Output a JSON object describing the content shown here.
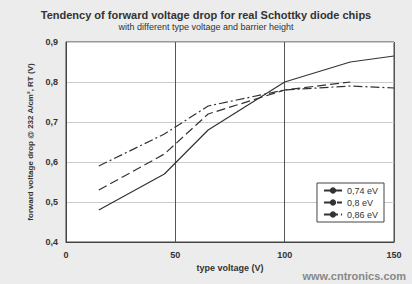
{
  "chart_data": {
    "type": "line",
    "title": "Tendency of forward voltage drop for real Schottky diode chips",
    "subtitle": "with different type voltage and barrier height",
    "x_label": "type voltage (V)",
    "y_label": "forward voltage drop @ 232 A/cm², RT (V)",
    "x": [
      15,
      45,
      65,
      100,
      130,
      150
    ],
    "series": [
      {
        "name": "0,74 eV",
        "color": "#333333",
        "line_style": "solid",
        "values": [
          0.48,
          0.57,
          0.68,
          0.8,
          0.85,
          0.865
        ]
      },
      {
        "name": "0,8 eV",
        "color": "#333333",
        "line_style": "dashed",
        "values": [
          0.53,
          0.62,
          0.72,
          0.78,
          0.8,
          null
        ]
      },
      {
        "name": "0,86 eV",
        "color": "#333333",
        "line_style": "dashdot",
        "values": [
          0.59,
          0.67,
          0.74,
          0.78,
          0.79,
          0.785
        ]
      }
    ],
    "xlim": [
      0,
      150
    ],
    "xticks": [
      0,
      50,
      100,
      150
    ],
    "ylim": [
      0.4,
      0.9
    ],
    "yticks": [
      {
        "value": 0.4,
        "label": "0,4"
      },
      {
        "value": 0.5,
        "label": "0,5"
      },
      {
        "value": 0.6,
        "label": "0,6"
      },
      {
        "value": 0.7,
        "label": "0,7"
      },
      {
        "value": 0.8,
        "label": "0,8"
      },
      {
        "value": 0.9,
        "label": "0,9"
      }
    ],
    "grid": true,
    "legend": "bottom-right",
    "annotations": [
      "www.cntronics.com"
    ]
  }
}
